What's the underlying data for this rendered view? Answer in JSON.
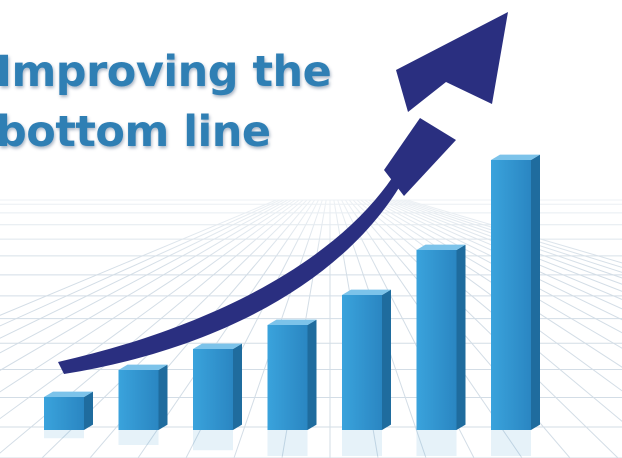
{
  "headline": {
    "line1": "Improving the",
    "line2": "bottom line"
  },
  "colors": {
    "headline": "#2f7fb4",
    "bar_front": "#2f93cf",
    "bar_top": "#7cc3ea",
    "bar_side": "#1f6c9e",
    "arrow": "#2a2f80",
    "grid": "#d3dde6"
  },
  "chart_data": {
    "type": "bar",
    "title": "",
    "xlabel": "",
    "ylabel": "",
    "grid": true,
    "categories": [
      "",
      "",
      "",
      "",
      "",
      "",
      ""
    ],
    "values": [
      11,
      20,
      27,
      35,
      45,
      60,
      90
    ],
    "ylim": [
      0,
      100
    ],
    "trend_arrow": {
      "direction": "up",
      "shape": "curved"
    }
  }
}
